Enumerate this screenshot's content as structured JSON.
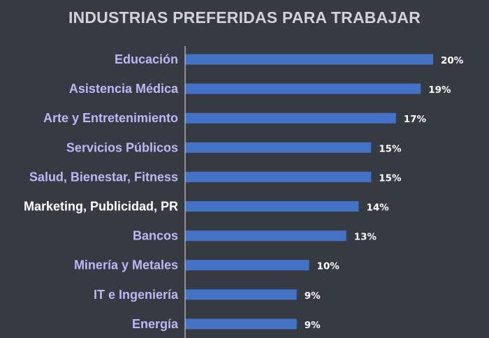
{
  "chart_data": {
    "type": "bar",
    "orientation": "horizontal",
    "title": "INDUSTRIAS PREFERIDAS PARA TRABAJAR",
    "categories": [
      "Educación",
      "Asistencia Médica",
      "Arte y Entretenimiento",
      "Servicios Públicos",
      "Salud, Bienestar, Fitness",
      "Marketing, Publicidad, PR",
      "Bancos",
      "Minería y Metales",
      "IT e Ingeniería",
      "Energía"
    ],
    "values": [
      20,
      19,
      17,
      15,
      15,
      14,
      13,
      10,
      9,
      9
    ],
    "value_labels": [
      "20%",
      "19%",
      "17%",
      "15%",
      "15%",
      "14%",
      "13%",
      "10%",
      "9%",
      "9%"
    ],
    "unit": "%",
    "highlighted_category": "Marketing, Publicidad, PR",
    "xlim": [
      0,
      20
    ],
    "grid": false,
    "legend": "none"
  },
  "colors": {
    "background": "#353a43",
    "bar": "#4472c4",
    "category_label": "#b9b9f5",
    "highlight_label": "#ffffff",
    "value_label": "#ffffff",
    "title": "#d2d2d6",
    "axis": "#c8c8c8"
  }
}
